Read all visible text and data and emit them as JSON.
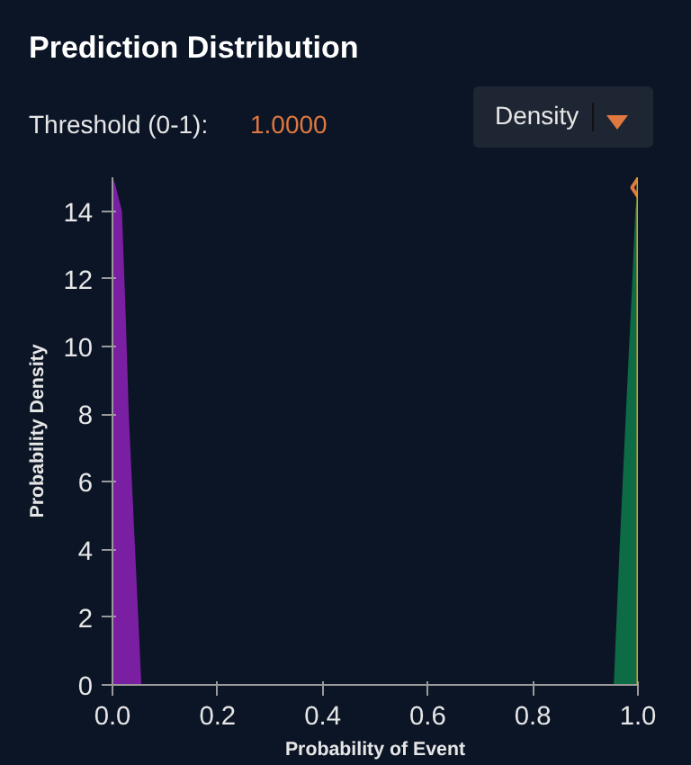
{
  "chart_data": {
    "type": "area",
    "title": "Prediction Distribution",
    "annotations": [
      "Threshold (0-1):",
      "1.0000",
      "Density"
    ],
    "xlabel": "Probability of Event",
    "ylabel": "Probability Density",
    "xlim": [
      0,
      1
    ],
    "ylim": [
      0,
      15
    ],
    "xticks": [
      {
        "value": 0,
        "label": "0.0"
      },
      {
        "value": 0.2,
        "label": "0.2"
      },
      {
        "value": 0.4,
        "label": "0.4"
      },
      {
        "value": 0.6,
        "label": "0.6"
      },
      {
        "value": 0.8,
        "label": "0.8"
      },
      {
        "value": 1,
        "label": "1.0"
      }
    ],
    "yticks": [
      0,
      2,
      4,
      6,
      8,
      10,
      12,
      14
    ],
    "grid": false,
    "series": [
      {
        "color": "#7b1fa2",
        "x": [
          0,
          0.005,
          0.018,
          0.025,
          0.031,
          0.04,
          0.049,
          0.055
        ],
        "values": [
          15,
          14.8,
          14,
          11,
          8,
          5,
          2,
          0
        ]
      },
      {
        "color": "#0d6b45",
        "x": [
          0.954,
          0.965,
          0.977,
          0.988,
          0.995,
          1.0
        ],
        "values": [
          0,
          4,
          8,
          11.5,
          14,
          14.7
        ]
      },
      {
        "type": "scatter",
        "marker": "diamond",
        "color": "#e07840",
        "x": [
          1.0
        ],
        "values": [
          14.7
        ]
      }
    ],
    "ref_lines": [
      {
        "axis": "x",
        "value": 1.0,
        "color": "#d9a520"
      }
    ]
  }
}
